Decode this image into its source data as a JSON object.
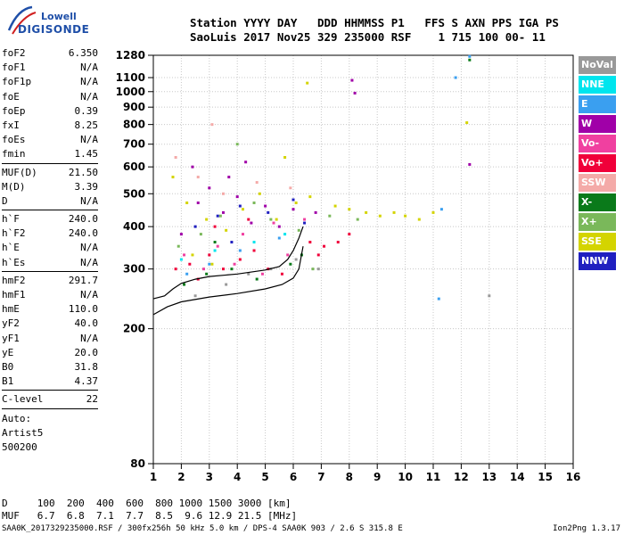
{
  "logo": {
    "line1": "Lowell",
    "line2": "DIGISONDE"
  },
  "header": {
    "line1": "Station YYYY DAY   DDD HHMMSS P1   FFS S AXN PPS IGA PS",
    "line2": "SaoLuis 2017 Nov25 329 235000 RSF    1 715 100 00- 11"
  },
  "params": [
    [
      [
        "foF2",
        "6.350"
      ],
      [
        "foF1",
        "N/A"
      ],
      [
        "foF1p",
        "N/A"
      ],
      [
        "foE",
        "N/A"
      ],
      [
        "foEp",
        "0.39"
      ],
      [
        "fxI",
        "8.25"
      ],
      [
        "foEs",
        "N/A"
      ],
      [
        "fmin",
        "1.45"
      ]
    ],
    [
      [
        "MUF(D)",
        "21.50"
      ],
      [
        "M(D)",
        "3.39"
      ],
      [
        "D",
        "N/A"
      ]
    ],
    [
      [
        "h`F",
        "240.0"
      ],
      [
        "h`F2",
        "240.0"
      ],
      [
        "h`E",
        "N/A"
      ],
      [
        "h`Es",
        "N/A"
      ]
    ],
    [
      [
        "hmF2",
        "291.7"
      ],
      [
        "hmF1",
        "N/A"
      ],
      [
        "hmE",
        "110.0"
      ],
      [
        "yF2",
        "40.0"
      ],
      [
        "yF1",
        "N/A"
      ],
      [
        "yE",
        "20.0"
      ],
      [
        "B0",
        "31.8"
      ],
      [
        "B1",
        "4.37"
      ]
    ],
    [
      [
        "C-level",
        "22"
      ]
    ]
  ],
  "auto_lines": [
    "Auto:",
    "Artist5",
    "500200"
  ],
  "legend": [
    {
      "label": "NoVal",
      "color": "#999999"
    },
    {
      "label": "NNE",
      "color": "#00e5ee"
    },
    {
      "label": "E",
      "color": "#3a9ff0"
    },
    {
      "label": "W",
      "color": "#a000a8"
    },
    {
      "label": "Vo-",
      "color": "#f040a0"
    },
    {
      "label": "Vo+",
      "color": "#f0003a"
    },
    {
      "label": "SSW",
      "color": "#f4aaa8"
    },
    {
      "label": "X-",
      "color": "#0a7a1a"
    },
    {
      "label": "X+",
      "color": "#7ab85a"
    },
    {
      "label": "SSE",
      "color": "#d4d400"
    },
    {
      "label": "NNW",
      "color": "#2020c0"
    }
  ],
  "muf_table": {
    "d_line": "D     100  200  400  600  800 1000 1500 3000 [km]",
    "muf_line": "MUF   6.7  6.8  7.1  7.7  8.5  9.6 12.9 21.5 [MHz]"
  },
  "footer": {
    "left": "SAA0K_2017329235000.RSF / 300fx256h 50 kHz 5.0 km / DPS-4 SAA0K 903 / 2.6 S 315.8 E",
    "right": "Ion2Png 1.3.17"
  },
  "chart_data": {
    "type": "scatter",
    "title": "",
    "xlabel": "",
    "ylabel": "",
    "xlim": [
      1,
      16
    ],
    "ylim": [
      80,
      1280
    ],
    "y_scale": "log",
    "x_ticks": [
      1,
      2,
      3,
      4,
      5,
      6,
      7,
      8,
      9,
      10,
      11,
      12,
      13,
      14,
      15,
      16
    ],
    "y_ticks": [
      80,
      200,
      300,
      400,
      500,
      600,
      700,
      800,
      900,
      1000,
      1100,
      1280
    ],
    "grid": true,
    "series": [
      {
        "name": "Vo+",
        "color": "#f0003a",
        "points": [
          [
            1.8,
            300
          ],
          [
            2.3,
            310
          ],
          [
            3.0,
            330
          ],
          [
            3.5,
            300
          ],
          [
            4.1,
            320
          ],
          [
            4.6,
            340
          ],
          [
            5.1,
            300
          ],
          [
            5.6,
            290
          ],
          [
            6.6,
            360
          ],
          [
            7.1,
            350
          ],
          [
            7.6,
            360
          ],
          [
            8.0,
            380
          ],
          [
            3.2,
            400
          ],
          [
            4.4,
            420
          ],
          [
            2.6,
            280
          ],
          [
            6.9,
            330
          ]
        ]
      },
      {
        "name": "Vo-",
        "color": "#f040a0",
        "points": [
          [
            2.1,
            330
          ],
          [
            3.3,
            350
          ],
          [
            4.2,
            380
          ],
          [
            5.3,
            410
          ],
          [
            6.4,
            420
          ],
          [
            2.8,
            300
          ],
          [
            3.9,
            310
          ],
          [
            4.9,
            290
          ],
          [
            5.8,
            330
          ]
        ]
      },
      {
        "name": "W",
        "color": "#a000a8",
        "points": [
          [
            2.0,
            380
          ],
          [
            2.6,
            470
          ],
          [
            3.0,
            520
          ],
          [
            3.5,
            440
          ],
          [
            4.0,
            490
          ],
          [
            4.5,
            410
          ],
          [
            5.0,
            460
          ],
          [
            5.5,
            400
          ],
          [
            6.0,
            450
          ],
          [
            6.8,
            440
          ],
          [
            2.4,
            600
          ],
          [
            3.7,
            560
          ],
          [
            4.3,
            620
          ],
          [
            8.1,
            1080
          ],
          [
            8.2,
            990
          ],
          [
            12.3,
            610
          ]
        ]
      },
      {
        "name": "SSE",
        "color": "#d4d400",
        "points": [
          [
            1.7,
            560
          ],
          [
            2.2,
            470
          ],
          [
            2.9,
            420
          ],
          [
            3.6,
            390
          ],
          [
            4.2,
            450
          ],
          [
            4.8,
            500
          ],
          [
            5.4,
            420
          ],
          [
            6.1,
            470
          ],
          [
            6.6,
            490
          ],
          [
            7.5,
            460
          ],
          [
            8.0,
            450
          ],
          [
            8.6,
            440
          ],
          [
            9.1,
            430
          ],
          [
            9.6,
            440
          ],
          [
            10.0,
            430
          ],
          [
            10.5,
            420
          ],
          [
            11.0,
            440
          ],
          [
            2.4,
            330
          ],
          [
            3.1,
            310
          ],
          [
            5.7,
            640
          ],
          [
            6.5,
            1060
          ],
          [
            12.2,
            810
          ]
        ]
      },
      {
        "name": "X+",
        "color": "#7ab85a",
        "points": [
          [
            1.9,
            350
          ],
          [
            2.7,
            380
          ],
          [
            3.4,
            430
          ],
          [
            4.6,
            470
          ],
          [
            5.2,
            420
          ],
          [
            6.2,
            390
          ],
          [
            7.3,
            430
          ],
          [
            8.3,
            420
          ],
          [
            6.7,
            300
          ],
          [
            4.0,
            700
          ]
        ]
      },
      {
        "name": "X-",
        "color": "#0a7a1a",
        "points": [
          [
            2.1,
            270
          ],
          [
            2.9,
            290
          ],
          [
            3.8,
            300
          ],
          [
            4.7,
            280
          ],
          [
            5.9,
            310
          ],
          [
            6.3,
            330
          ],
          [
            3.2,
            360
          ],
          [
            12.3,
            1240
          ]
        ]
      },
      {
        "name": "E",
        "color": "#3a9ff0",
        "points": [
          [
            2.2,
            290
          ],
          [
            3.0,
            310
          ],
          [
            4.1,
            340
          ],
          [
            5.5,
            370
          ],
          [
            11.8,
            1100
          ],
          [
            11.3,
            450
          ],
          [
            11.2,
            245
          ],
          [
            12.3,
            1270
          ]
        ]
      },
      {
        "name": "NNW",
        "color": "#2020c0",
        "points": [
          [
            2.5,
            400
          ],
          [
            3.3,
            430
          ],
          [
            4.1,
            460
          ],
          [
            5.1,
            440
          ],
          [
            6.0,
            480
          ],
          [
            3.8,
            360
          ],
          [
            6.4,
            410
          ]
        ]
      },
      {
        "name": "SSW",
        "color": "#f4aaa8",
        "points": [
          [
            1.8,
            640
          ],
          [
            2.6,
            560
          ],
          [
            3.5,
            500
          ],
          [
            4.7,
            540
          ],
          [
            5.9,
            520
          ],
          [
            3.1,
            800
          ]
        ]
      },
      {
        "name": "NoVal",
        "color": "#999999",
        "points": [
          [
            2.5,
            250
          ],
          [
            3.6,
            270
          ],
          [
            4.4,
            290
          ],
          [
            5.2,
            300
          ],
          [
            6.1,
            320
          ],
          [
            6.9,
            300
          ],
          [
            13.0,
            250
          ]
        ]
      },
      {
        "name": "NNE",
        "color": "#00e5ee",
        "points": [
          [
            2.0,
            320
          ],
          [
            3.2,
            340
          ],
          [
            4.6,
            360
          ],
          [
            5.7,
            380
          ]
        ]
      }
    ],
    "curves": [
      {
        "name": "profile-lower",
        "color": "#000000",
        "points": [
          [
            1.0,
            220
          ],
          [
            1.5,
            232
          ],
          [
            2.0,
            240
          ],
          [
            3.0,
            248
          ],
          [
            4.0,
            254
          ],
          [
            5.0,
            262
          ],
          [
            5.6,
            270
          ],
          [
            6.0,
            282
          ],
          [
            6.2,
            300
          ],
          [
            6.35,
            350
          ]
        ]
      },
      {
        "name": "profile-upper",
        "color": "#000000",
        "points": [
          [
            1.0,
            245
          ],
          [
            1.4,
            250
          ],
          [
            1.7,
            262
          ],
          [
            2.0,
            272
          ],
          [
            2.5,
            280
          ],
          [
            3.0,
            285
          ],
          [
            4.0,
            290
          ],
          [
            5.0,
            298
          ],
          [
            5.5,
            305
          ],
          [
            5.8,
            320
          ],
          [
            6.0,
            340
          ],
          [
            6.2,
            370
          ],
          [
            6.35,
            400
          ]
        ]
      }
    ]
  }
}
